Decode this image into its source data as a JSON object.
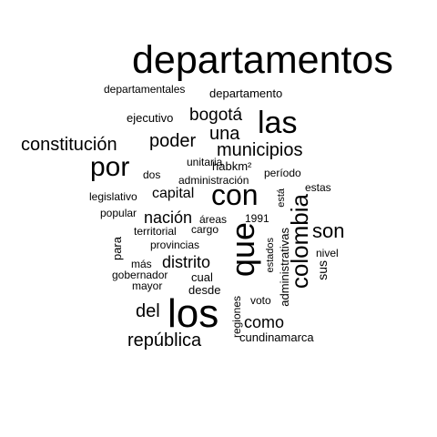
{
  "word_cloud": {
    "text_color": "#000000",
    "background": "#ffffff",
    "words": [
      {
        "key": "departamentos",
        "text": "departamentos"
      },
      {
        "key": "departamentales",
        "text": "departamentales"
      },
      {
        "key": "departamento",
        "text": "departamento"
      },
      {
        "key": "ejecutivo",
        "text": "ejecutivo"
      },
      {
        "key": "bogota",
        "text": "bogotá"
      },
      {
        "key": "las",
        "text": "las"
      },
      {
        "key": "una",
        "text": "una"
      },
      {
        "key": "constitucion",
        "text": "constitución"
      },
      {
        "key": "poder",
        "text": "poder"
      },
      {
        "key": "municipios",
        "text": "municipios"
      },
      {
        "key": "unitaria",
        "text": "unitaria"
      },
      {
        "key": "por",
        "text": "por"
      },
      {
        "key": "habkm2",
        "text": "habkm²"
      },
      {
        "key": "dos",
        "text": "dos"
      },
      {
        "key": "periodo",
        "text": "período"
      },
      {
        "key": "administracion",
        "text": "administración"
      },
      {
        "key": "esta",
        "text": "está"
      },
      {
        "key": "estas",
        "text": "estas"
      },
      {
        "key": "capital",
        "text": "capital"
      },
      {
        "key": "con",
        "text": "con"
      },
      {
        "key": "legislativo",
        "text": "legislativo"
      },
      {
        "key": "popular",
        "text": "popular"
      },
      {
        "key": "nacion",
        "text": "nación"
      },
      {
        "key": "areas",
        "text": "áreas"
      },
      {
        "key": "y1991",
        "text": "1991"
      },
      {
        "key": "colombia",
        "text": "colombia"
      },
      {
        "key": "son",
        "text": "son"
      },
      {
        "key": "territorial",
        "text": "territorial"
      },
      {
        "key": "cargo",
        "text": "cargo"
      },
      {
        "key": "para",
        "text": "para"
      },
      {
        "key": "que",
        "text": "que"
      },
      {
        "key": "administrativas",
        "text": "administrativas"
      },
      {
        "key": "estados",
        "text": "estados"
      },
      {
        "key": "provincias",
        "text": "provincias"
      },
      {
        "key": "nivel",
        "text": "nivel"
      },
      {
        "key": "mas",
        "text": "más"
      },
      {
        "key": "distrito",
        "text": "distrito"
      },
      {
        "key": "sus",
        "text": "sus"
      },
      {
        "key": "gobernador",
        "text": "gobernador"
      },
      {
        "key": "cual",
        "text": "cual"
      },
      {
        "key": "mayor",
        "text": "mayor"
      },
      {
        "key": "desde",
        "text": "desde"
      },
      {
        "key": "voto",
        "text": "voto"
      },
      {
        "key": "del",
        "text": "del"
      },
      {
        "key": "los",
        "text": "los"
      },
      {
        "key": "regiones",
        "text": "regiones"
      },
      {
        "key": "como",
        "text": "como"
      },
      {
        "key": "republica",
        "text": "república"
      },
      {
        "key": "cundinamarca",
        "text": "cundinamarca"
      }
    ]
  }
}
